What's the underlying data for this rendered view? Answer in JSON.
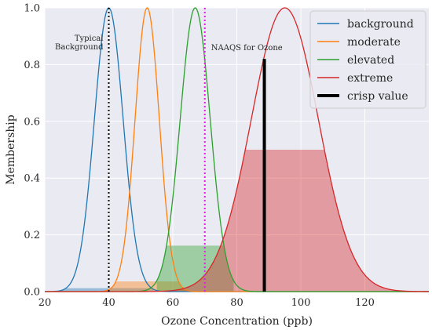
{
  "chart_data": {
    "type": "line",
    "xlabel": "Ozone Concentration (ppb)",
    "ylabel": "Membership",
    "xlim": [
      20,
      140
    ],
    "ylim": [
      0,
      1.0
    ],
    "xticks": [
      20,
      40,
      60,
      80,
      100,
      120
    ],
    "yticks": [
      0.0,
      0.2,
      0.4,
      0.6,
      0.8,
      1.0
    ],
    "xtick_labels": [
      "20",
      "40",
      "60",
      "80",
      "100",
      "120"
    ],
    "ytick_labels": [
      "0.0",
      "0.2",
      "0.4",
      "0.6",
      "0.8",
      "1.0"
    ],
    "grid": true,
    "legend_position": "top-right",
    "series": [
      {
        "name": "background",
        "color": "#1f77b4",
        "mean": 40,
        "sigma": 4.5,
        "fill_level": 0.012,
        "fill_range": [
          20,
          54
        ]
      },
      {
        "name": "moderate",
        "color": "#ff7f0e",
        "mean": 52,
        "sigma": 3.8,
        "fill_level": 0.036,
        "fill_range": [
          40,
          66
        ]
      },
      {
        "name": "elevated",
        "color": "#2ca02c",
        "mean": 67,
        "sigma": 4.7,
        "fill_level": 0.162,
        "fill_range": [
          55,
          79
        ]
      },
      {
        "name": "extreme",
        "color": "#d62728",
        "mean": 95,
        "sigma": 10.5,
        "fill_level": 0.5,
        "fill_range": [
          60,
          140
        ]
      }
    ],
    "crisp_value": {
      "name": "crisp value",
      "x": 88.6,
      "y": 0.82,
      "color": "#000000"
    },
    "vlines": [
      {
        "x": 40,
        "color": "#000000",
        "style": "dotted",
        "label_lines": [
          "Typical",
          "Background"
        ]
      },
      {
        "x": 70,
        "color": "#e31ae3",
        "style": "dotted",
        "label_lines": [
          "NAAQS for Ozone"
        ]
      }
    ]
  }
}
